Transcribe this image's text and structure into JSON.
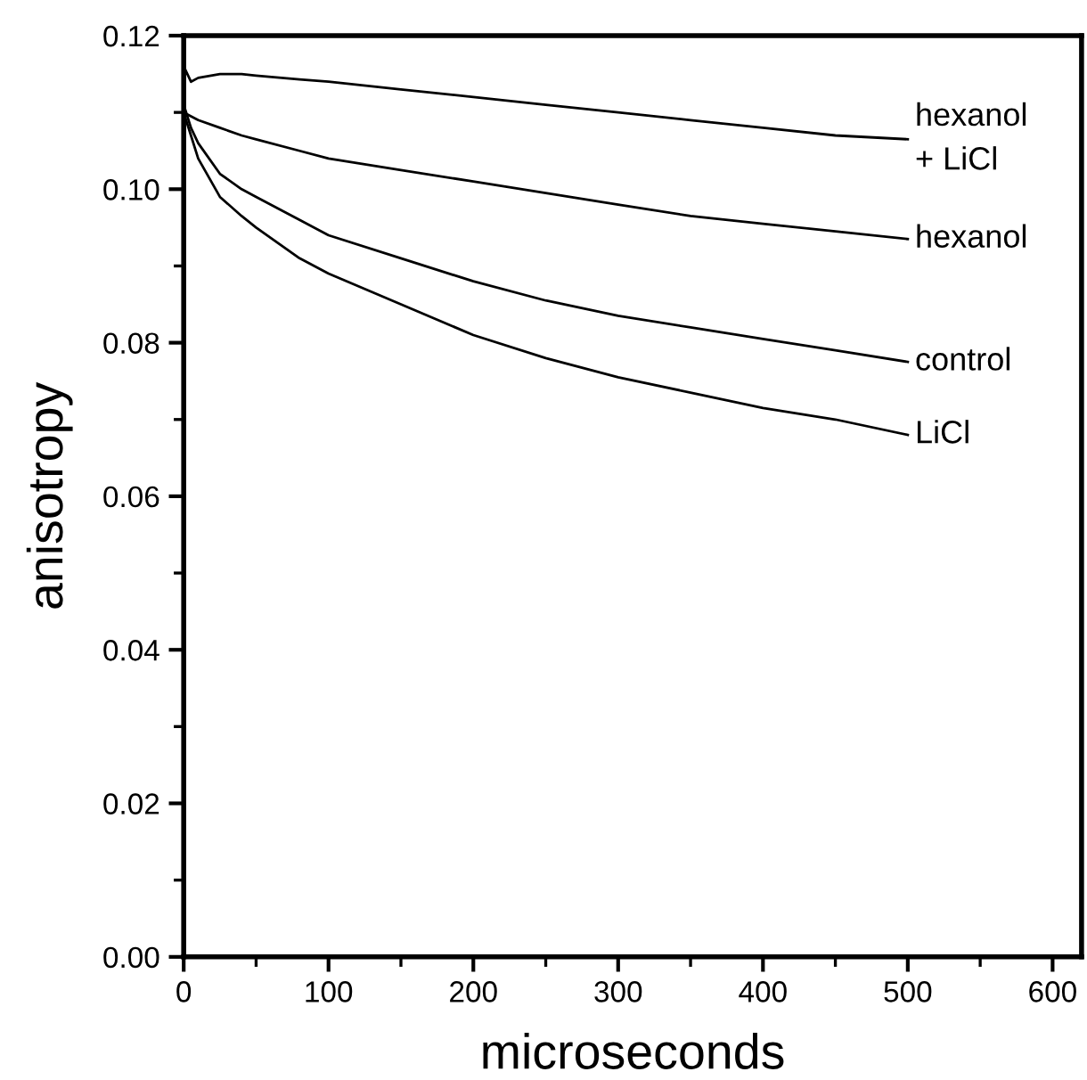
{
  "chart_data": {
    "type": "line",
    "xlabel": "microseconds",
    "ylabel": "anisotropy",
    "xlim": [
      0,
      620
    ],
    "ylim": [
      0,
      0.12
    ],
    "xticks": [
      0,
      {
        "value": 50,
        "label": null
      },
      100,
      {
        "value": 150,
        "label": null
      },
      200,
      {
        "value": 250,
        "label": null
      },
      300,
      {
        "value": 350,
        "label": null
      },
      400,
      {
        "value": 450,
        "label": null
      },
      500,
      {
        "value": 550,
        "label": null
      },
      600
    ],
    "yticks": [
      {
        "value": 0,
        "label": "0.00"
      },
      {
        "value": 0.01,
        "label": null
      },
      {
        "value": 0.02,
        "label": "0.02"
      },
      {
        "value": 0.03,
        "label": null
      },
      {
        "value": 0.04,
        "label": "0.04"
      },
      {
        "value": 0.05,
        "label": null
      },
      {
        "value": 0.06,
        "label": "0.06"
      },
      {
        "value": 0.07,
        "label": null
      },
      {
        "value": 0.08,
        "label": "0.08"
      },
      {
        "value": 0.09,
        "label": null
      },
      {
        "value": 0.1,
        "label": "0.10"
      },
      {
        "value": 0.11,
        "label": null
      },
      {
        "value": 0.12,
        "label": "0.12"
      }
    ],
    "grid": false,
    "legend": false,
    "marker": "none",
    "line_style": "solid",
    "x": [
      0,
      5,
      10,
      25,
      40,
      50,
      80,
      100,
      150,
      200,
      250,
      300,
      350,
      400,
      450,
      500
    ],
    "series": [
      {
        "name": "hexanol\n+ LiCl",
        "color": "#000000",
        "values": [
          0.116,
          0.114,
          0.1145,
          0.115,
          0.115,
          0.1148,
          0.1143,
          0.114,
          0.113,
          0.112,
          0.111,
          0.11,
          0.109,
          0.108,
          0.107,
          0.1065
        ]
      },
      {
        "name": "hexanol",
        "color": "#000000",
        "values": [
          0.11,
          0.1095,
          0.109,
          0.108,
          0.107,
          0.1065,
          0.105,
          0.104,
          0.1025,
          0.101,
          0.0995,
          0.098,
          0.0965,
          0.0955,
          0.0945,
          0.0935
        ]
      },
      {
        "name": "control",
        "color": "#000000",
        "values": [
          0.111,
          0.108,
          0.106,
          0.102,
          0.1,
          0.099,
          0.096,
          0.094,
          0.091,
          0.088,
          0.0855,
          0.0835,
          0.082,
          0.0805,
          0.079,
          0.0775
        ]
      },
      {
        "name": "LiCl",
        "color": "#000000",
        "values": [
          0.11,
          0.107,
          0.104,
          0.099,
          0.0965,
          0.095,
          0.091,
          0.089,
          0.085,
          0.081,
          0.078,
          0.0755,
          0.0735,
          0.0715,
          0.07,
          0.068
        ]
      }
    ]
  }
}
